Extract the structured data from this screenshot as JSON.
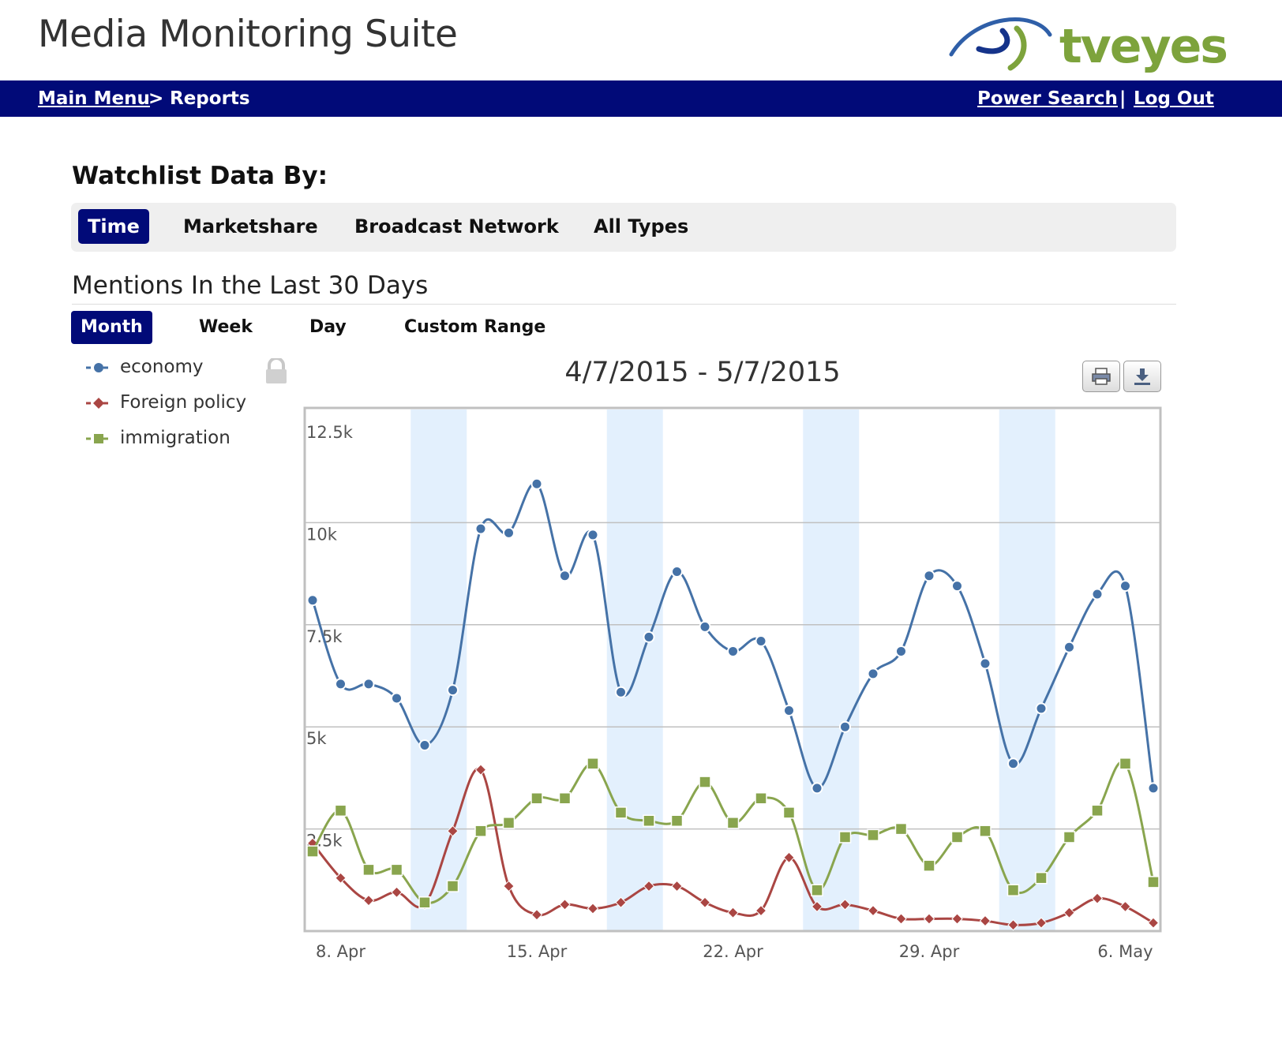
{
  "header": {
    "app_title": "Media Monitoring Suite",
    "logo_text": "tveyes"
  },
  "navbar": {
    "main_menu": "Main Menu",
    "separator_arrow": ">",
    "reports": "Reports",
    "power_search": "Power Search",
    "pipe": "|",
    "log_out": "Log Out"
  },
  "watchlist": {
    "title": "Watchlist Data By:",
    "tabs": [
      "Time",
      "Marketshare",
      "Broadcast Network",
      "All Types"
    ],
    "active_tab": "Time"
  },
  "mentions": {
    "title": "Mentions In the Last 30 Days",
    "range_tabs": [
      "Month",
      "Week",
      "Day",
      "Custom Range"
    ],
    "active_range": "Month"
  },
  "chart_data": {
    "type": "line",
    "title": "4/7/2015 - 5/7/2015",
    "x": [
      "2015-04-07",
      "2015-04-08",
      "2015-04-09",
      "2015-04-10",
      "2015-04-11",
      "2015-04-12",
      "2015-04-13",
      "2015-04-14",
      "2015-04-15",
      "2015-04-16",
      "2015-04-17",
      "2015-04-18",
      "2015-04-19",
      "2015-04-20",
      "2015-04-21",
      "2015-04-22",
      "2015-04-23",
      "2015-04-24",
      "2015-04-25",
      "2015-04-26",
      "2015-04-27",
      "2015-04-28",
      "2015-04-29",
      "2015-04-30",
      "2015-05-01",
      "2015-05-02",
      "2015-05-03",
      "2015-05-04",
      "2015-05-05",
      "2015-05-06",
      "2015-05-07"
    ],
    "x_ticks": [
      "8. Apr",
      "15. Apr",
      "22. Apr",
      "29. Apr",
      "6. May"
    ],
    "y_ticks": [
      "2.5k",
      "5k",
      "7.5k",
      "10k",
      "12.5k"
    ],
    "ylim": [
      0,
      12500
    ],
    "weekend_bands": [
      [
        "2015-04-11",
        "2015-04-12"
      ],
      [
        "2015-04-18",
        "2015-04-19"
      ],
      [
        "2015-04-25",
        "2015-04-26"
      ],
      [
        "2015-05-02",
        "2015-05-03"
      ]
    ],
    "series": [
      {
        "name": "economy",
        "color": "#4572a7",
        "marker": "circle",
        "values": [
          8100,
          6050,
          6050,
          5700,
          4550,
          5900,
          9850,
          9750,
          10950,
          8700,
          9700,
          5850,
          7200,
          8800,
          7450,
          6850,
          7100,
          5400,
          3500,
          5000,
          6300,
          6850,
          8700,
          8450,
          6550,
          4100,
          5450,
          6950,
          8250,
          8450,
          3500
        ]
      },
      {
        "name": "Foreign policy",
        "color": "#aa4643",
        "marker": "diamond",
        "values": [
          2150,
          1300,
          750,
          950,
          650,
          2450,
          3950,
          1100,
          400,
          650,
          550,
          700,
          1100,
          1100,
          700,
          450,
          500,
          1800,
          600,
          650,
          500,
          300,
          300,
          300,
          250,
          150,
          200,
          450,
          800,
          600,
          200
        ]
      },
      {
        "name": "immigration",
        "color": "#89a54e",
        "marker": "square",
        "values": [
          1950,
          2950,
          1500,
          1500,
          700,
          1100,
          2450,
          2650,
          3250,
          3250,
          4100,
          2900,
          2700,
          2700,
          3650,
          2650,
          3250,
          2900,
          1000,
          2300,
          2350,
          2500,
          1600,
          2300,
          2450,
          1000,
          1300,
          2300,
          2950,
          4100,
          1200
        ]
      }
    ]
  },
  "icons": {
    "lock": "lock-icon",
    "print": "print-icon",
    "download": "download-icon"
  }
}
